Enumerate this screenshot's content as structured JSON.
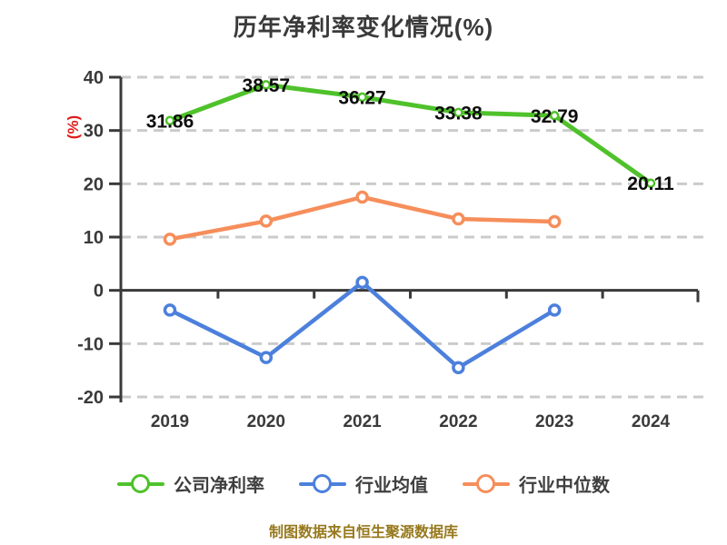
{
  "title": "历年净利率变化情况(%)",
  "y_axis_label": "(%)",
  "footer": "制图数据来自恒生聚源数据库",
  "colors": {
    "company": "#4fc22b",
    "industry_avg": "#4c80dc",
    "industry_median": "#f68e5b",
    "gridline": "#cbcbcb",
    "axis": "#3a3a3a",
    "tick_label": "#3a3a3a",
    "data_label": "#0d0d0d",
    "title_text": "#3a3a3a",
    "y_axis_label_red": "#e11d1d",
    "footer_gold": "#97791d",
    "legend_text": "#3f3f3f",
    "marker_fill": "#ffffff"
  },
  "chart_data": {
    "type": "line",
    "categories": [
      "2019",
      "2020",
      "2021",
      "2022",
      "2023",
      "2024"
    ],
    "series": [
      {
        "name": "公司净利率",
        "color_key": "company",
        "values": [
          31.86,
          38.57,
          36.27,
          33.38,
          32.79,
          20.11
        ],
        "point_labels": [
          "31.86",
          "38.57",
          "36.27",
          "33.38",
          "32.79",
          "20.11"
        ]
      },
      {
        "name": "行业均值",
        "color_key": "industry_avg",
        "values": [
          -3.7,
          -12.6,
          1.5,
          -14.5,
          -3.7,
          null
        ],
        "point_labels": null
      },
      {
        "name": "行业中位数",
        "color_key": "industry_median",
        "values": [
          9.6,
          13.0,
          17.5,
          13.4,
          12.9,
          null
        ],
        "point_labels": null
      }
    ],
    "ylim": [
      -20,
      40
    ],
    "y_ticks": [
      40,
      30,
      20,
      10,
      0,
      -10,
      -20
    ],
    "grid": "horizontal-dashed",
    "zero_axis": "solid-with-ticks",
    "legend_position": "bottom"
  }
}
